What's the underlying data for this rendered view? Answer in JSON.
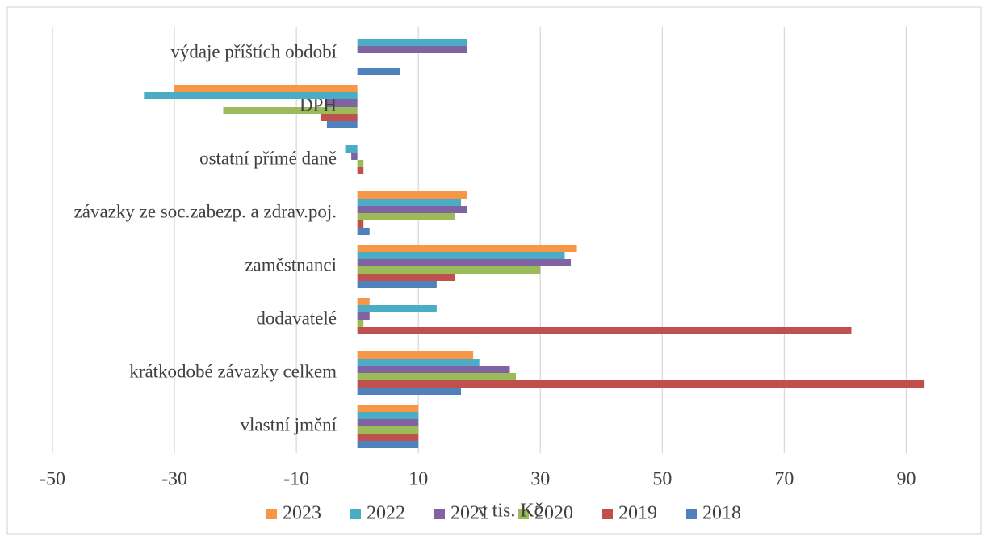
{
  "chart_data": {
    "type": "hbar",
    "xlabel": "v tis. Kč",
    "categories": [
      "vlastní jmění",
      "krátkodobé závazky celkem",
      "dodavatelé",
      "zaměstnanci",
      "závazky ze soc.zabezp. a zdrav.poj.",
      "ostatní přímé daně",
      "DPH",
      "výdaje příštích období"
    ],
    "series": [
      {
        "name": "2023",
        "color": "#f79646",
        "values": [
          10,
          19,
          2,
          36,
          18,
          0,
          -30,
          0
        ]
      },
      {
        "name": "2022",
        "color": "#4bacc6",
        "values": [
          10,
          20,
          13,
          34,
          17,
          -2,
          -35,
          18
        ]
      },
      {
        "name": "2021",
        "color": "#8064a2",
        "values": [
          10,
          25,
          2,
          35,
          18,
          -1,
          -5,
          18
        ]
      },
      {
        "name": "2020",
        "color": "#9bbb59",
        "values": [
          10,
          26,
          1,
          30,
          16,
          1,
          -22,
          0
        ]
      },
      {
        "name": "2019",
        "color": "#c0504d",
        "values": [
          10,
          93,
          81,
          16,
          1,
          1,
          -6,
          0
        ]
      },
      {
        "name": "2018",
        "color": "#4f81bd",
        "values": [
          10,
          17,
          0,
          13,
          2,
          0,
          -5,
          7
        ]
      }
    ],
    "xlim": [
      -50,
      100
    ],
    "xticks": [
      -50,
      -30,
      -10,
      10,
      30,
      50,
      70,
      90
    ],
    "grid": true,
    "legend": "bottom"
  }
}
